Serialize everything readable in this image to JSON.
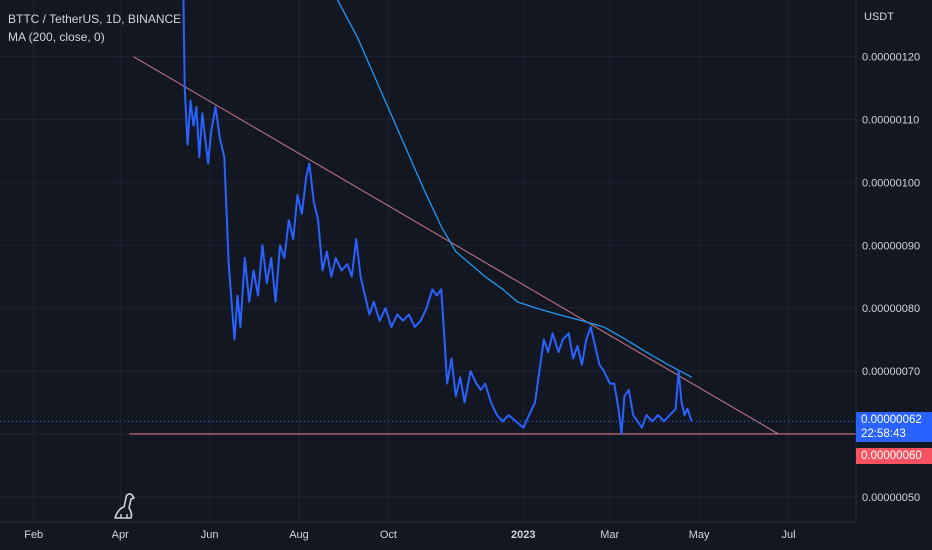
{
  "legend": {
    "symbol": "BTTC / TetherUS, 1D, BINANCE",
    "indicator": "MA (200, close, 0)"
  },
  "logo_icon": "tradingview-dino-icon",
  "colors": {
    "background": "#131722",
    "grid": "#1f2433",
    "price_line": "#2962ff",
    "ma_line": "#2196f3",
    "trendline": "#b06a7c",
    "support_line": "#d97a86",
    "current_price_bg": "#2962ff",
    "support_price_bg": "#f7525f",
    "axis_text": "#d1d4dc"
  },
  "price_tags": {
    "current_price": "0.00000062",
    "countdown": "22:58:43",
    "support_price": "0.00000060"
  },
  "chart_data": {
    "type": "line",
    "title": "BTTC / TetherUS, 1D, BINANCE",
    "xlabel": "",
    "ylabel": "USDT",
    "x_ticks": [
      "Feb",
      "Apr",
      "Jun",
      "Aug",
      "Oct",
      "2023",
      "Mar",
      "May",
      "Jul"
    ],
    "y_ticks": [
      "0.00000050",
      "0.00000060",
      "0.00000070",
      "0.00000080",
      "0.00000090",
      "0.00000100",
      "0.00000110",
      "0.00000120"
    ],
    "ylim": [
      4.6e-07,
      1.29e-06
    ],
    "xlim": [
      "2022-01-09",
      "2023-08-16"
    ],
    "grid": true,
    "series": [
      {
        "name": "BTTC / TetherUS",
        "points": [
          [
            "2022-05-14",
            1.32e-06
          ],
          [
            "2022-05-15",
            1.15e-06
          ],
          [
            "2022-05-17",
            1.06e-06
          ],
          [
            "2022-05-19",
            1.13e-06
          ],
          [
            "2022-05-21",
            1.09e-06
          ],
          [
            "2022-05-23",
            1.12e-06
          ],
          [
            "2022-05-25",
            1.04e-06
          ],
          [
            "2022-05-27",
            1.11e-06
          ],
          [
            "2022-05-29",
            1.07e-06
          ],
          [
            "2022-05-31",
            1.03e-06
          ],
          [
            "2022-06-02",
            1.08e-06
          ],
          [
            "2022-06-05",
            1.12e-06
          ],
          [
            "2022-06-08",
            1.07e-06
          ],
          [
            "2022-06-11",
            1.04e-06
          ],
          [
            "2022-06-14",
            8.7e-07
          ],
          [
            "2022-06-16",
            8.1e-07
          ],
          [
            "2022-06-18",
            7.5e-07
          ],
          [
            "2022-06-20",
            8.2e-07
          ],
          [
            "2022-06-22",
            7.7e-07
          ],
          [
            "2022-06-25",
            8.8e-07
          ],
          [
            "2022-06-28",
            8.1e-07
          ],
          [
            "2022-07-01",
            8.6e-07
          ],
          [
            "2022-07-04",
            8.2e-07
          ],
          [
            "2022-07-07",
            9e-07
          ],
          [
            "2022-07-10",
            8.4e-07
          ],
          [
            "2022-07-13",
            8.8e-07
          ],
          [
            "2022-07-16",
            8.1e-07
          ],
          [
            "2022-07-19",
            9e-07
          ],
          [
            "2022-07-22",
            8.8e-07
          ],
          [
            "2022-07-25",
            9.4e-07
          ],
          [
            "2022-07-28",
            9.1e-07
          ],
          [
            "2022-07-31",
            9.8e-07
          ],
          [
            "2022-08-03",
            9.5e-07
          ],
          [
            "2022-08-06",
            1.01e-06
          ],
          [
            "2022-08-08",
            1.03e-06
          ],
          [
            "2022-08-11",
            9.7e-07
          ],
          [
            "2022-08-14",
            9.4e-07
          ],
          [
            "2022-08-17",
            8.6e-07
          ],
          [
            "2022-08-20",
            8.9e-07
          ],
          [
            "2022-08-23",
            8.5e-07
          ],
          [
            "2022-08-26",
            8.8e-07
          ],
          [
            "2022-08-30",
            8.6e-07
          ],
          [
            "2022-09-03",
            8.7e-07
          ],
          [
            "2022-09-06",
            8.5e-07
          ],
          [
            "2022-09-09",
            9.1e-07
          ],
          [
            "2022-09-12",
            8.5e-07
          ],
          [
            "2022-09-15",
            8.2e-07
          ],
          [
            "2022-09-18",
            7.9e-07
          ],
          [
            "2022-09-21",
            8.1e-07
          ],
          [
            "2022-09-25",
            7.8e-07
          ],
          [
            "2022-09-29",
            8e-07
          ],
          [
            "2022-10-03",
            7.7e-07
          ],
          [
            "2022-10-07",
            7.9e-07
          ],
          [
            "2022-10-11",
            7.8e-07
          ],
          [
            "2022-10-15",
            7.9e-07
          ],
          [
            "2022-10-19",
            7.7e-07
          ],
          [
            "2022-10-23",
            7.8e-07
          ],
          [
            "2022-10-27",
            8e-07
          ],
          [
            "2022-10-31",
            8.3e-07
          ],
          [
            "2022-11-03",
            8.2e-07
          ],
          [
            "2022-11-06",
            8.3e-07
          ],
          [
            "2022-11-08",
            7.6e-07
          ],
          [
            "2022-11-10",
            6.8e-07
          ],
          [
            "2022-11-13",
            7.2e-07
          ],
          [
            "2022-11-16",
            6.6e-07
          ],
          [
            "2022-11-19",
            6.9e-07
          ],
          [
            "2022-11-22",
            6.5e-07
          ],
          [
            "2022-11-26",
            7e-07
          ],
          [
            "2022-11-30",
            6.8e-07
          ],
          [
            "2022-12-03",
            6.7e-07
          ],
          [
            "2022-12-06",
            6.8e-07
          ],
          [
            "2022-12-10",
            6.5e-07
          ],
          [
            "2022-12-14",
            6.3e-07
          ],
          [
            "2022-12-18",
            6.2e-07
          ],
          [
            "2022-12-22",
            6.3e-07
          ],
          [
            "2022-12-27",
            6.2e-07
          ],
          [
            "2023-01-01",
            6.1e-07
          ],
          [
            "2023-01-05",
            6.3e-07
          ],
          [
            "2023-01-09",
            6.5e-07
          ],
          [
            "2023-01-12",
            7e-07
          ],
          [
            "2023-01-15",
            7.5e-07
          ],
          [
            "2023-01-18",
            7.3e-07
          ],
          [
            "2023-01-21",
            7.6e-07
          ],
          [
            "2023-01-25",
            7.3e-07
          ],
          [
            "2023-01-28",
            7.5e-07
          ],
          [
            "2023-02-01",
            7.6e-07
          ],
          [
            "2023-02-04",
            7.2e-07
          ],
          [
            "2023-02-07",
            7.4e-07
          ],
          [
            "2023-02-10",
            7.1e-07
          ],
          [
            "2023-02-13",
            7.5e-07
          ],
          [
            "2023-02-16",
            7.7e-07
          ],
          [
            "2023-02-19",
            7.4e-07
          ],
          [
            "2023-02-22",
            7.1e-07
          ],
          [
            "2023-02-25",
            7e-07
          ],
          [
            "2023-03-01",
            6.8e-07
          ],
          [
            "2023-03-04",
            6.8e-07
          ],
          [
            "2023-03-07",
            6.4e-07
          ],
          [
            "2023-03-09",
            6e-07
          ],
          [
            "2023-03-11",
            6.6e-07
          ],
          [
            "2023-03-14",
            6.7e-07
          ],
          [
            "2023-03-17",
            6.3e-07
          ],
          [
            "2023-03-20",
            6.2e-07
          ],
          [
            "2023-03-23",
            6.1e-07
          ],
          [
            "2023-03-26",
            6.3e-07
          ],
          [
            "2023-03-30",
            6.2e-07
          ],
          [
            "2023-04-03",
            6.3e-07
          ],
          [
            "2023-04-07",
            6.2e-07
          ],
          [
            "2023-04-11",
            6.3e-07
          ],
          [
            "2023-04-15",
            6.4e-07
          ],
          [
            "2023-04-17",
            7e-07
          ],
          [
            "2023-04-19",
            6.5e-07
          ],
          [
            "2023-04-21",
            6.3e-07
          ],
          [
            "2023-04-23",
            6.4e-07
          ],
          [
            "2023-04-26",
            6.2e-07
          ]
        ]
      },
      {
        "name": "MA (200, close, 0)",
        "points": [
          [
            "2022-08-25",
            1.3e-06
          ],
          [
            "2022-09-10",
            1.23e-06
          ],
          [
            "2022-09-25",
            1.15e-06
          ],
          [
            "2022-10-10",
            1.07e-06
          ],
          [
            "2022-10-25",
            9.9e-07
          ],
          [
            "2022-11-06",
            9.3e-07
          ],
          [
            "2022-11-16",
            8.9e-07
          ],
          [
            "2022-11-26",
            8.7e-07
          ],
          [
            "2022-12-06",
            8.5e-07
          ],
          [
            "2022-12-18",
            8.3e-07
          ],
          [
            "2022-12-28",
            8.1e-07
          ],
          [
            "2023-01-10",
            8e-07
          ],
          [
            "2023-01-25",
            7.9e-07
          ],
          [
            "2023-02-10",
            7.8e-07
          ],
          [
            "2023-02-25",
            7.7e-07
          ],
          [
            "2023-03-12",
            7.5e-07
          ],
          [
            "2023-03-26",
            7.3e-07
          ],
          [
            "2023-04-10",
            7.1e-07
          ],
          [
            "2023-04-26",
            6.9e-07
          ]
        ]
      }
    ],
    "trendlines": [
      {
        "from": [
          "2022-04-10",
          1.2e-06
        ],
        "to": [
          "2023-06-24",
          6e-07
        ]
      },
      {
        "from": [
          "2022-04-07",
          6e-07
        ],
        "to": [
          "2023-08-16",
          6e-07
        ]
      }
    ]
  }
}
